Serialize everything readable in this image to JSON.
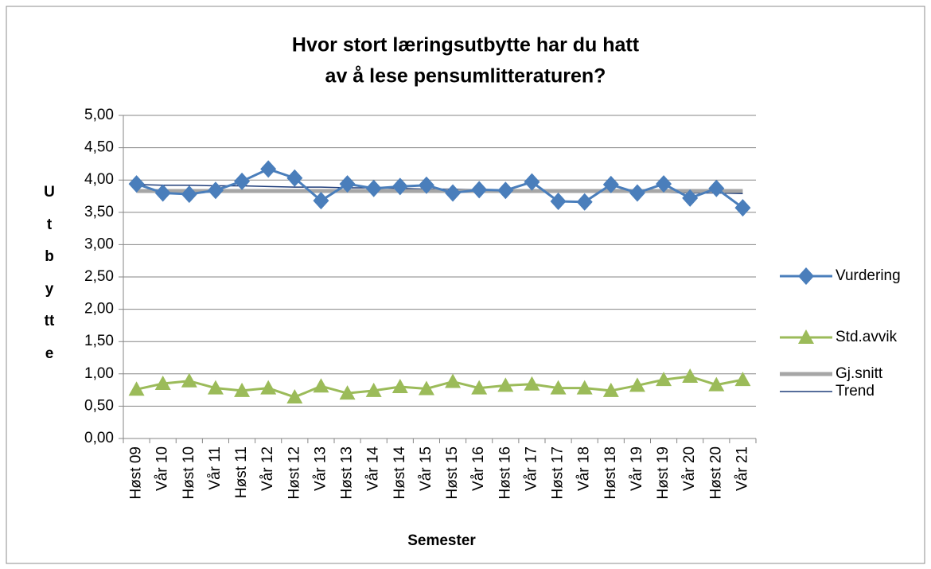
{
  "chart_data": {
    "type": "line",
    "title": [
      "Hvor stort læringsutbytte har du hatt",
      "av å lese pensumlitteraturen?"
    ],
    "x_label": "Semester",
    "y_label": "Utbytte",
    "categories": [
      "Høst 09",
      "Vår 10",
      "Høst 10",
      "Vår 11",
      "Høst 11",
      "Vår 12",
      "Høst 12",
      "Vår 13",
      "Høst 13",
      "Vår 14",
      "Høst 14",
      "Vår 15",
      "Høst 15",
      "Vår 16",
      "Høst 16",
      "Vår 17",
      "Høst 17",
      "Vår 18",
      "Høst 18",
      "Vår 19",
      "Høst 19",
      "Vår 20",
      "Høst 20",
      "Vår 21"
    ],
    "series": [
      {
        "name": "Vurdering",
        "color": "#4a7ebb",
        "marker": "diamond",
        "line_width": 3,
        "values": [
          3.94,
          3.8,
          3.78,
          3.84,
          3.98,
          4.17,
          4.03,
          3.68,
          3.94,
          3.87,
          3.9,
          3.92,
          3.8,
          3.85,
          3.84,
          3.97,
          3.67,
          3.66,
          3.93,
          3.8,
          3.94,
          3.72,
          3.87,
          3.57
        ]
      },
      {
        "name": "Std.avvik",
        "color": "#9bbb59",
        "marker": "triangle",
        "line_width": 3,
        "values": [
          0.76,
          0.85,
          0.89,
          0.78,
          0.74,
          0.78,
          0.64,
          0.81,
          0.7,
          0.74,
          0.8,
          0.77,
          0.88,
          0.78,
          0.82,
          0.84,
          0.78,
          0.78,
          0.74,
          0.82,
          0.91,
          0.96,
          0.83,
          0.91
        ]
      },
      {
        "name": "Gj.snitt",
        "color": "#a6a6a6",
        "marker": "none",
        "line_width": 5,
        "values": [
          3.83,
          3.83,
          3.83,
          3.83,
          3.83,
          3.83,
          3.83,
          3.83,
          3.83,
          3.83,
          3.83,
          3.83,
          3.83,
          3.83,
          3.83,
          3.83,
          3.83,
          3.83,
          3.83,
          3.83,
          3.83,
          3.83,
          3.83,
          3.83
        ]
      },
      {
        "name": "Trend",
        "color": "#1f3d7a",
        "marker": "none",
        "line_width": 1.5,
        "values": [
          3.93,
          3.92,
          3.92,
          3.91,
          3.91,
          3.9,
          3.89,
          3.89,
          3.88,
          3.88,
          3.87,
          3.86,
          3.86,
          3.85,
          3.85,
          3.84,
          3.83,
          3.83,
          3.82,
          3.81,
          3.81,
          3.8,
          3.8,
          3.79
        ]
      }
    ],
    "ylim": [
      0,
      5
    ],
    "yticks": [
      {
        "value": 0,
        "label": "0,00"
      },
      {
        "value": 0.5,
        "label": "0,50"
      },
      {
        "value": 1,
        "label": "1,00"
      },
      {
        "value": 1.5,
        "label": "1,50"
      },
      {
        "value": 2,
        "label": "2,00"
      },
      {
        "value": 2.5,
        "label": "2,50"
      },
      {
        "value": 3,
        "label": "3,00"
      },
      {
        "value": 3.5,
        "label": "3,50"
      },
      {
        "value": 4,
        "label": "4,00"
      },
      {
        "value": 4.5,
        "label": "4,50"
      },
      {
        "value": 5,
        "label": "5,00"
      }
    ],
    "grid": true,
    "legend": "right"
  }
}
